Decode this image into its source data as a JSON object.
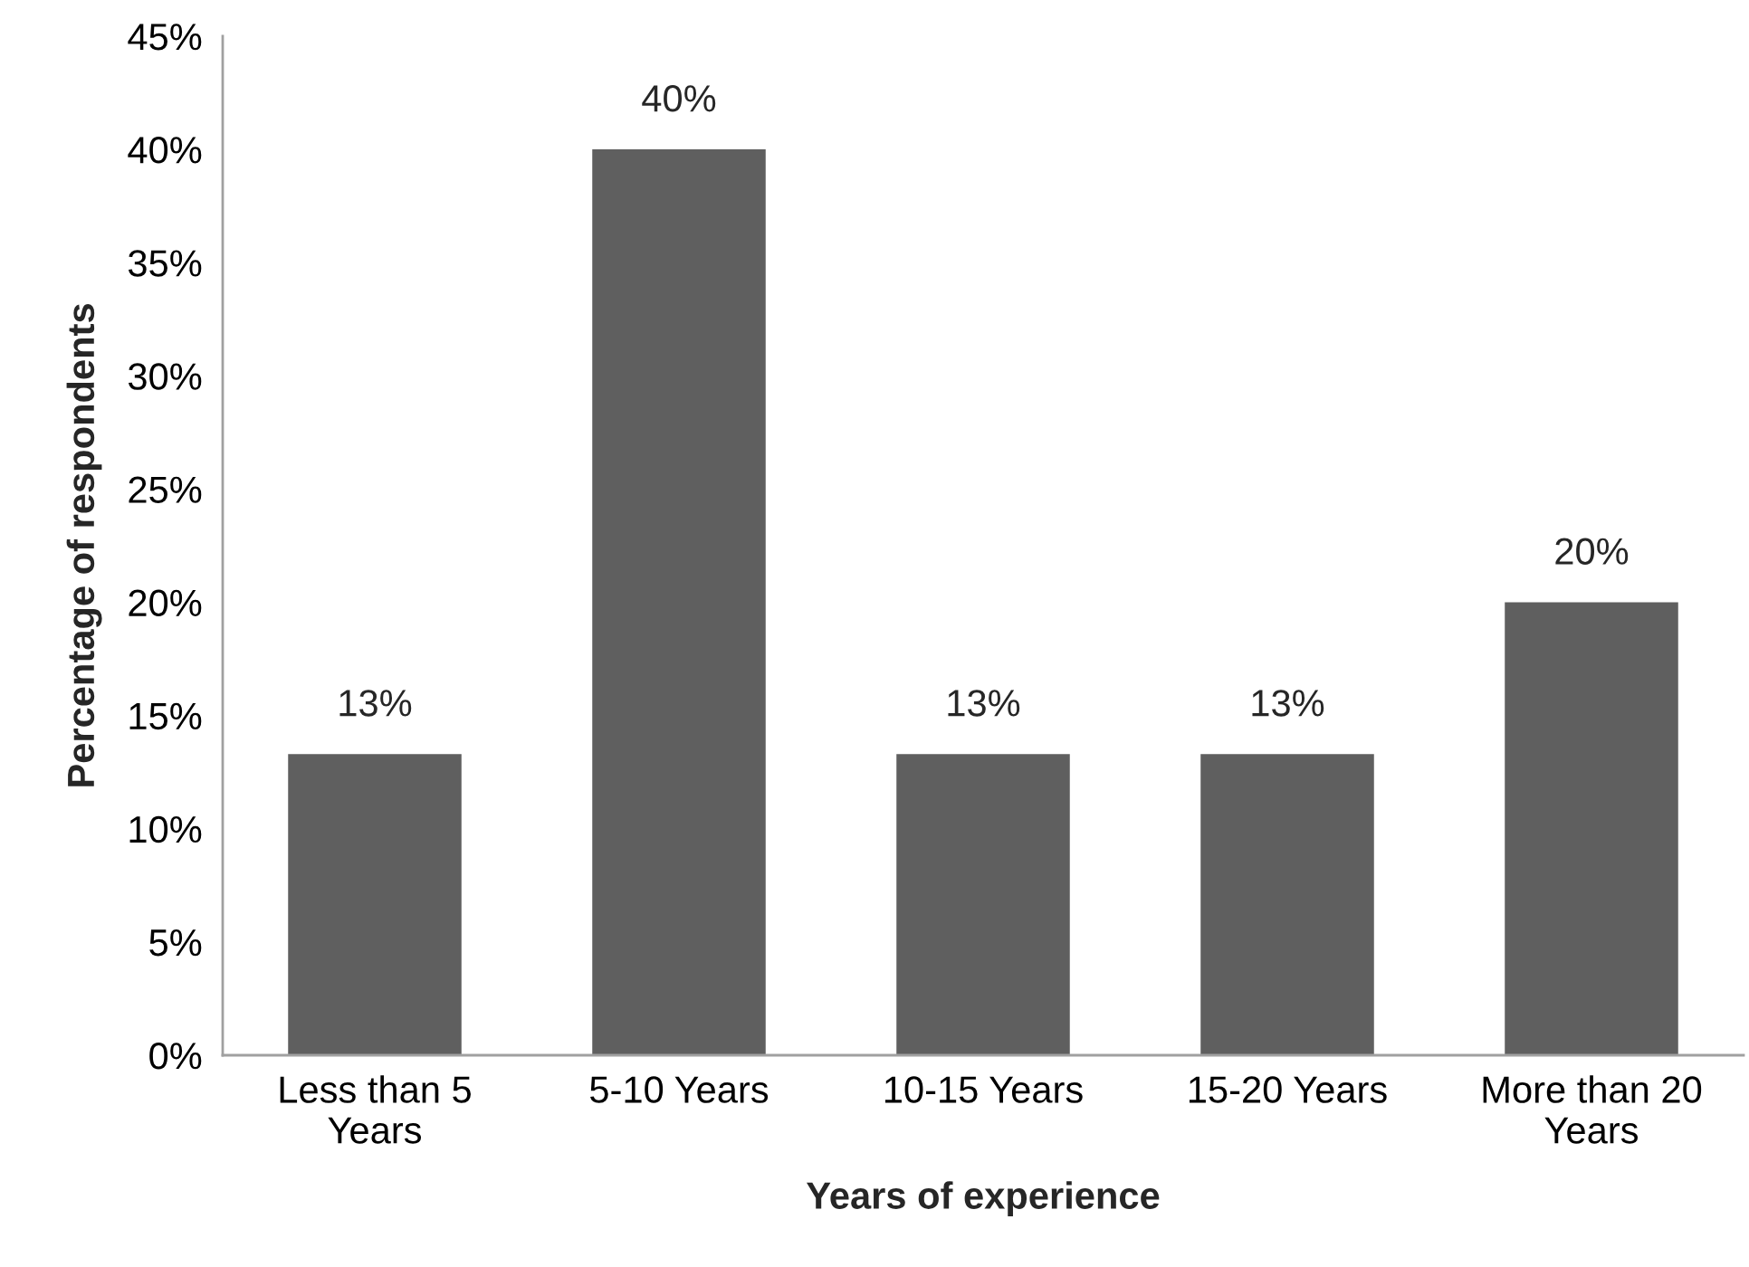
{
  "chart_data": {
    "type": "bar",
    "xlabel": "Years of experience",
    "ylabel": "Percentage of respondents",
    "categories": [
      "Less than 5\nYears",
      "5-10 Years",
      "10-15 Years",
      "15-20 Years",
      "More than 20\nYears"
    ],
    "values": [
      13.3,
      40,
      13.3,
      13.3,
      20
    ],
    "value_labels": [
      "13%",
      "40%",
      "13%",
      "13%",
      "20%"
    ],
    "color": "#5f5f5f",
    "ylim": [
      0,
      45
    ],
    "yticks": [
      {
        "value": 0,
        "label": "0%"
      },
      {
        "value": 5,
        "label": "5%"
      },
      {
        "value": 10,
        "label": "10%"
      },
      {
        "value": 15,
        "label": "15%"
      },
      {
        "value": 20,
        "label": "20%"
      },
      {
        "value": 25,
        "label": "25%"
      },
      {
        "value": 30,
        "label": "30%"
      },
      {
        "value": 35,
        "label": "35%"
      },
      {
        "value": 40,
        "label": "40%"
      },
      {
        "value": 45,
        "label": "45%"
      }
    ],
    "grid": false
  }
}
